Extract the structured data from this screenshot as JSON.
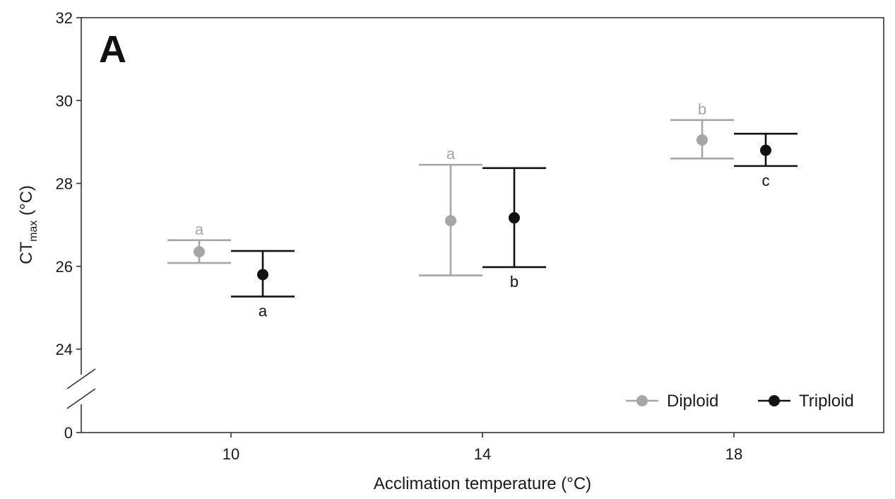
{
  "panel_label": "A",
  "chart_data": {
    "type": "scatter",
    "title": "",
    "panel": "A",
    "xlabel": "Acclimation temperature (°C)",
    "ylabel": {
      "main": "CT",
      "sub": "max",
      "unit": " (°C)"
    },
    "categories": [
      "10",
      "14",
      "18"
    ],
    "y_break": {
      "below": 24,
      "axis_ticks": [
        "0",
        "24",
        "26",
        "28",
        "30",
        "32"
      ]
    },
    "ylim": [
      24,
      32
    ],
    "grid": false,
    "legend_position": "bottom-right",
    "series": [
      {
        "name": "Diploid",
        "color": "#a6a6a6",
        "means": [
          26.35,
          27.1,
          29.05
        ],
        "lower": [
          26.08,
          25.78,
          28.6
        ],
        "upper": [
          26.63,
          28.45,
          29.53
        ],
        "letters": [
          "a",
          "a",
          "b"
        ],
        "letter_position": "above"
      },
      {
        "name": "Triploid",
        "color": "#111111",
        "means": [
          25.8,
          27.17,
          28.8
        ],
        "lower": [
          25.27,
          25.98,
          28.42
        ],
        "upper": [
          26.37,
          28.37,
          29.2
        ],
        "letters": [
          "a",
          "b",
          "c"
        ],
        "letter_position": "below"
      }
    ]
  }
}
